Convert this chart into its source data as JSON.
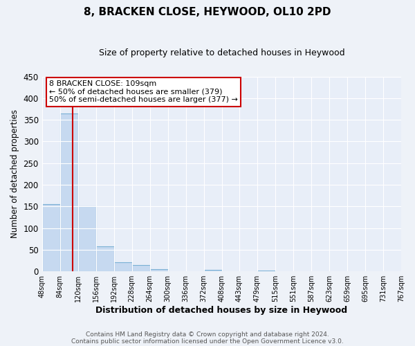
{
  "title": "8, BRACKEN CLOSE, HEYWOOD, OL10 2PD",
  "subtitle": "Size of property relative to detached houses in Heywood",
  "xlabel": "Distribution of detached houses by size in Heywood",
  "ylabel": "Number of detached properties",
  "bar_edges": [
    48,
    84,
    120,
    156,
    192,
    228,
    264,
    300,
    336,
    372,
    408,
    443,
    479,
    515,
    551,
    587,
    623,
    659,
    695,
    731,
    767
  ],
  "bar_heights": [
    155,
    365,
    150,
    58,
    21,
    15,
    5,
    0,
    0,
    3,
    0,
    0,
    2,
    0,
    0,
    0,
    0,
    0,
    0,
    0
  ],
  "bar_color": "#c6d9f0",
  "bar_edgecolor": "#7ab0d4",
  "property_line_x": 109,
  "property_line_color": "#cc0000",
  "annotation_box_color": "#cc0000",
  "annotation_line1": "8 BRACKEN CLOSE: 109sqm",
  "annotation_line2": "← 50% of detached houses are smaller (379)",
  "annotation_line3": "50% of semi-detached houses are larger (377) →",
  "ylim": [
    0,
    450
  ],
  "tick_labels": [
    "48sqm",
    "84sqm",
    "120sqm",
    "156sqm",
    "192sqm",
    "228sqm",
    "264sqm",
    "300sqm",
    "336sqm",
    "372sqm",
    "408sqm",
    "443sqm",
    "479sqm",
    "515sqm",
    "551sqm",
    "587sqm",
    "623sqm",
    "659sqm",
    "695sqm",
    "731sqm",
    "767sqm"
  ],
  "footer1": "Contains HM Land Registry data © Crown copyright and database right 2024.",
  "footer2": "Contains public sector information licensed under the Open Government Licence v3.0.",
  "background_color": "#eef2f8",
  "plot_bg_color": "#e8eef8",
  "grid_color": "#ffffff",
  "figsize": [
    6.0,
    5.0
  ],
  "dpi": 100
}
